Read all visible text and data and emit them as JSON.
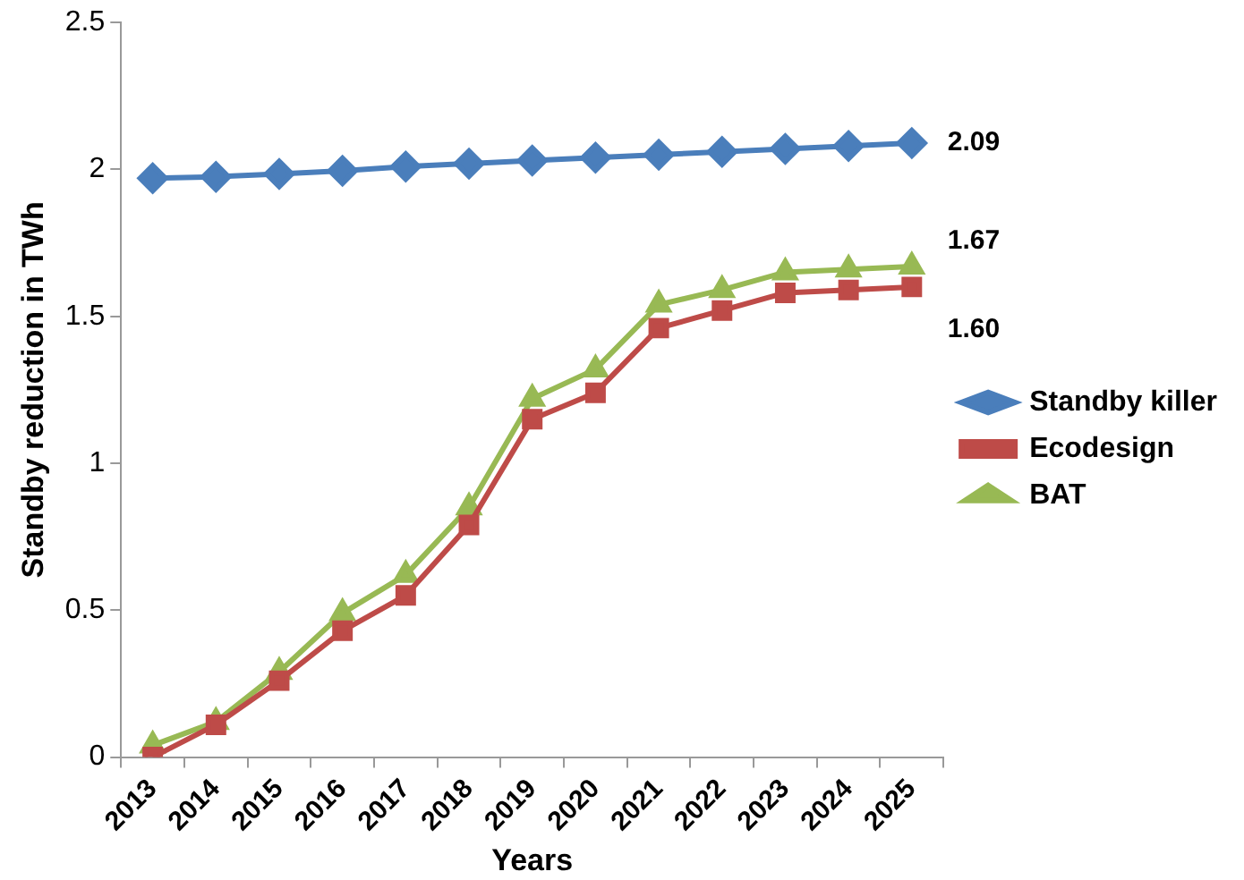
{
  "chart_data": {
    "type": "line",
    "xlabel": "Years",
    "ylabel": "Standby reduction in TWh",
    "categories": [
      "2013",
      "2014",
      "2015",
      "2016",
      "2017",
      "2018",
      "2019",
      "2020",
      "2021",
      "2022",
      "2023",
      "2024",
      "2025"
    ],
    "series": [
      {
        "name": "Standby killer",
        "color": "#4a7ebb",
        "marker": "diamond",
        "values": [
          1.97,
          1.975,
          1.985,
          1.995,
          2.01,
          2.02,
          2.03,
          2.04,
          2.05,
          2.06,
          2.07,
          2.08,
          2.09
        ]
      },
      {
        "name": "Ecodesign",
        "color": "#be4b48",
        "marker": "square",
        "values": [
          0,
          0.11,
          0.26,
          0.43,
          0.55,
          0.79,
          1.15,
          1.24,
          1.46,
          1.52,
          1.58,
          1.59,
          1.6
        ]
      },
      {
        "name": "BAT",
        "color": "#98b954",
        "marker": "triangle",
        "values": [
          0.04,
          0.12,
          0.29,
          0.49,
          0.62,
          0.85,
          1.22,
          1.32,
          1.54,
          1.59,
          1.65,
          1.66,
          1.67
        ]
      }
    ],
    "annotations": [
      {
        "text": "2.09",
        "x": "2025",
        "y": 2.09
      },
      {
        "text": "1.67",
        "x": "2025",
        "y": 1.67
      },
      {
        "text": "1.60",
        "x": "2025",
        "y": 1.6
      }
    ],
    "ylim": [
      0,
      2.5
    ],
    "yticks": [
      0,
      0.5,
      1,
      1.5,
      2,
      2.5
    ],
    "grid": false,
    "legend": "right"
  }
}
